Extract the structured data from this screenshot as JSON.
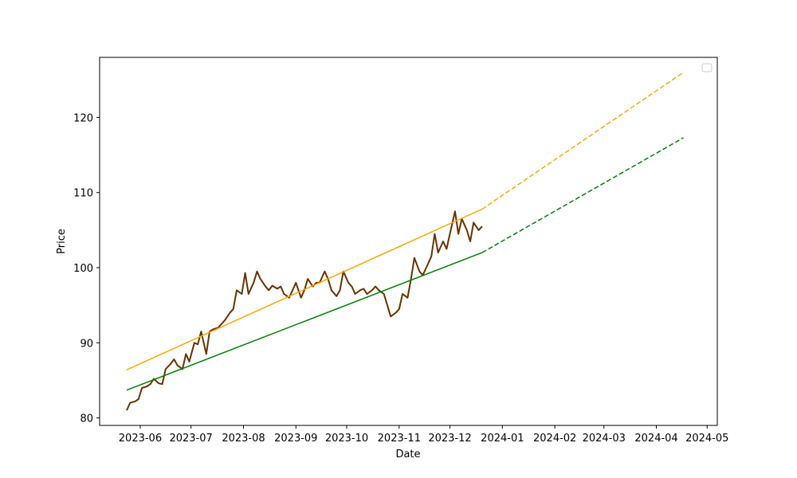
{
  "chart_data": {
    "type": "line",
    "xlabel": "Date",
    "ylabel": "Price",
    "title": "",
    "xlim": [
      "2023-05-08",
      "2024-05-07"
    ],
    "ylim": [
      79,
      128
    ],
    "x_ticks": [
      "2023-06",
      "2023-07",
      "2023-08",
      "2023-09",
      "2023-10",
      "2023-11",
      "2023-12",
      "2024-01",
      "2024-02",
      "2024-03",
      "2024-04",
      "2024-05"
    ],
    "y_ticks": [
      80,
      90,
      100,
      110,
      120
    ],
    "grid": false,
    "legend": "top-right (empty)",
    "colors": {
      "price": "#663300",
      "upper_trend": "#FFA500",
      "lower_trend": "#008000",
      "frame": "#000000"
    },
    "series": [
      {
        "line_style": "solid",
        "color_key": "price",
        "points": [
          [
            "2023-05-24",
            81.0
          ],
          [
            "2023-05-26",
            82.0
          ],
          [
            "2023-05-29",
            82.2
          ],
          [
            "2023-05-31",
            82.5
          ],
          [
            "2023-06-02",
            84.0
          ],
          [
            "2023-06-05",
            84.2
          ],
          [
            "2023-06-07",
            84.5
          ],
          [
            "2023-06-09",
            85.2
          ],
          [
            "2023-06-12",
            84.6
          ],
          [
            "2023-06-14",
            84.5
          ],
          [
            "2023-06-16",
            86.5
          ],
          [
            "2023-06-19",
            87.2
          ],
          [
            "2023-06-21",
            87.8
          ],
          [
            "2023-06-23",
            87.0
          ],
          [
            "2023-06-26",
            86.5
          ],
          [
            "2023-06-28",
            88.5
          ],
          [
            "2023-06-30",
            87.5
          ],
          [
            "2023-07-03",
            90.0
          ],
          [
            "2023-07-05",
            89.8
          ],
          [
            "2023-07-07",
            91.5
          ],
          [
            "2023-07-10",
            88.5
          ],
          [
            "2023-07-12",
            91.5
          ],
          [
            "2023-07-14",
            91.8
          ],
          [
            "2023-07-17",
            92.0
          ],
          [
            "2023-07-19",
            92.5
          ],
          [
            "2023-07-21",
            93.0
          ],
          [
            "2023-07-24",
            94.0
          ],
          [
            "2023-07-26",
            94.5
          ],
          [
            "2023-07-28",
            97.0
          ],
          [
            "2023-07-31",
            96.5
          ],
          [
            "2023-08-02",
            99.3
          ],
          [
            "2023-08-04",
            96.5
          ],
          [
            "2023-08-07",
            98.0
          ],
          [
            "2023-08-09",
            99.5
          ],
          [
            "2023-08-11",
            98.5
          ],
          [
            "2023-08-14",
            97.5
          ],
          [
            "2023-08-16",
            97.0
          ],
          [
            "2023-08-18",
            97.6
          ],
          [
            "2023-08-21",
            97.2
          ],
          [
            "2023-08-23",
            97.5
          ],
          [
            "2023-08-25",
            96.5
          ],
          [
            "2023-08-28",
            96.0
          ],
          [
            "2023-08-30",
            97.0
          ],
          [
            "2023-09-01",
            98.0
          ],
          [
            "2023-09-04",
            96.0
          ],
          [
            "2023-09-06",
            97.0
          ],
          [
            "2023-09-08",
            98.5
          ],
          [
            "2023-09-11",
            97.5
          ],
          [
            "2023-09-13",
            98.0
          ],
          [
            "2023-09-15",
            98.0
          ],
          [
            "2023-09-18",
            99.5
          ],
          [
            "2023-09-20",
            98.5
          ],
          [
            "2023-09-22",
            97.0
          ],
          [
            "2023-09-25",
            96.2
          ],
          [
            "2023-09-27",
            97.0
          ],
          [
            "2023-09-29",
            99.5
          ],
          [
            "2023-10-02",
            98.0
          ],
          [
            "2023-10-04",
            97.5
          ],
          [
            "2023-10-06",
            96.5
          ],
          [
            "2023-10-09",
            97.0
          ],
          [
            "2023-10-11",
            97.2
          ],
          [
            "2023-10-13",
            96.5
          ],
          [
            "2023-10-16",
            97.0
          ],
          [
            "2023-10-18",
            97.5
          ],
          [
            "2023-10-20",
            97.0
          ],
          [
            "2023-10-23",
            96.5
          ],
          [
            "2023-10-25",
            95.0
          ],
          [
            "2023-10-27",
            93.5
          ],
          [
            "2023-10-30",
            94.0
          ],
          [
            "2023-11-01",
            94.5
          ],
          [
            "2023-11-03",
            96.5
          ],
          [
            "2023-11-06",
            96.0
          ],
          [
            "2023-11-08",
            98.5
          ],
          [
            "2023-11-10",
            101.3
          ],
          [
            "2023-11-13",
            99.5
          ],
          [
            "2023-11-15",
            99.0
          ],
          [
            "2023-11-17",
            100.0
          ],
          [
            "2023-11-20",
            101.5
          ],
          [
            "2023-11-22",
            104.5
          ],
          [
            "2023-11-24",
            102.0
          ],
          [
            "2023-11-27",
            103.5
          ],
          [
            "2023-11-29",
            102.5
          ],
          [
            "2023-12-01",
            104.5
          ],
          [
            "2023-12-04",
            107.5
          ],
          [
            "2023-12-06",
            104.5
          ],
          [
            "2023-12-08",
            106.5
          ],
          [
            "2023-12-11",
            105.0
          ],
          [
            "2023-12-13",
            103.5
          ],
          [
            "2023-12-15",
            106.0
          ],
          [
            "2023-12-18",
            105.0
          ],
          [
            "2023-12-20",
            105.5
          ]
        ]
      },
      {
        "line_style": "solid",
        "color_key": "upper_trend",
        "points": [
          [
            "2023-05-24",
            86.4
          ],
          [
            "2023-12-20",
            107.8
          ]
        ]
      },
      {
        "line_style": "dashed",
        "color_key": "upper_trend",
        "points": [
          [
            "2023-12-20",
            107.8
          ],
          [
            "2024-04-17",
            126.0
          ]
        ]
      },
      {
        "line_style": "solid",
        "color_key": "lower_trend",
        "points": [
          [
            "2023-05-24",
            83.7
          ],
          [
            "2023-12-20",
            102.0
          ]
        ]
      },
      {
        "line_style": "dashed",
        "color_key": "lower_trend",
        "points": [
          [
            "2023-12-20",
            102.0
          ],
          [
            "2024-04-17",
            117.3
          ]
        ]
      }
    ]
  }
}
